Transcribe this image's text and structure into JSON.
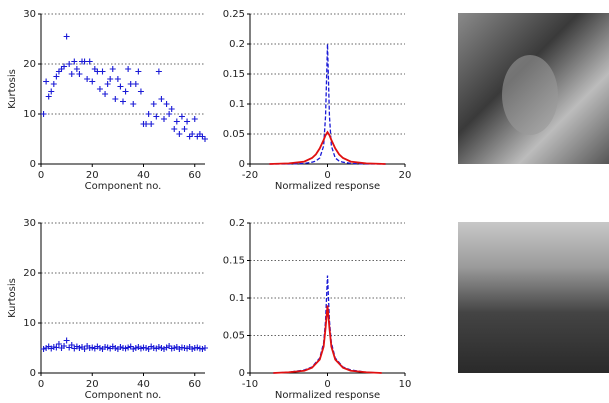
{
  "chart_data": [
    {
      "type": "scatter",
      "xlabel": "Component no.",
      "ylabel": "Kurtosis",
      "xlim": [
        0,
        64
      ],
      "ylim": [
        0,
        30
      ],
      "xticks": [
        0,
        20,
        40,
        60
      ],
      "yticks": [
        0,
        10,
        20,
        30
      ],
      "grid": true,
      "color": "#1a1ad6",
      "x": [
        1,
        2,
        3,
        4,
        5,
        6,
        7,
        8,
        9,
        10,
        11,
        12,
        13,
        14,
        15,
        16,
        17,
        18,
        19,
        20,
        21,
        22,
        23,
        24,
        25,
        26,
        27,
        28,
        29,
        30,
        31,
        32,
        33,
        34,
        35,
        36,
        37,
        38,
        39,
        40,
        41,
        42,
        43,
        44,
        45,
        46,
        47,
        48,
        49,
        50,
        51,
        52,
        53,
        54,
        55,
        56,
        57,
        58,
        59,
        60,
        61,
        62,
        63,
        64
      ],
      "values": [
        10,
        16.5,
        13.5,
        14.5,
        16,
        17.5,
        18.5,
        19,
        19.5,
        25.5,
        20,
        18,
        20.5,
        19,
        18,
        20.5,
        20.5,
        17,
        20.5,
        16.5,
        19,
        18.5,
        15,
        18.5,
        14,
        16,
        17,
        19,
        13,
        17,
        15.5,
        12.5,
        14.5,
        19,
        16,
        12,
        16,
        18.5,
        14.5,
        8,
        8,
        10,
        8,
        12,
        9.5,
        18.5,
        13,
        9,
        12,
        10,
        11,
        7,
        8.5,
        6,
        9.5,
        7,
        8.5,
        5.5,
        6,
        9,
        5.5,
        6,
        5.5,
        5
      ]
    },
    {
      "type": "line",
      "xlabel": "Normalized response",
      "xlim": [
        -20,
        20
      ],
      "ylim": [
        0,
        0.25
      ],
      "xticks": [
        -20,
        0,
        20
      ],
      "yticks": [
        0,
        0.05,
        0.1,
        0.15,
        0.2,
        0.25
      ],
      "grid": true,
      "x": [
        -15,
        -10,
        -6,
        -4,
        -3,
        -2,
        -1,
        -0.5,
        0,
        0.5,
        1,
        2,
        3,
        4,
        6,
        10,
        15
      ],
      "series": [
        {
          "color": "#1a1ad6",
          "style": "dashed",
          "values": [
            0,
            0,
            0.001,
            0.003,
            0.005,
            0.01,
            0.03,
            0.08,
            0.2,
            0.08,
            0.03,
            0.01,
            0.005,
            0.003,
            0.001,
            0,
            0
          ]
        },
        {
          "color": "#e01010",
          "style": "solid",
          "values": [
            0,
            0.001,
            0.004,
            0.01,
            0.016,
            0.026,
            0.04,
            0.048,
            0.053,
            0.048,
            0.04,
            0.026,
            0.016,
            0.01,
            0.004,
            0.001,
            0
          ]
        }
      ]
    },
    {
      "type": "scatter",
      "xlabel": "Component no.",
      "ylabel": "Kurtosis",
      "xlim": [
        0,
        64
      ],
      "ylim": [
        0,
        30
      ],
      "xticks": [
        0,
        20,
        40,
        60
      ],
      "yticks": [
        0,
        10,
        20,
        30
      ],
      "grid": true,
      "color": "#1a1ad6",
      "x": [
        1,
        2,
        3,
        4,
        5,
        6,
        7,
        8,
        9,
        10,
        11,
        12,
        13,
        14,
        15,
        16,
        17,
        18,
        19,
        20,
        21,
        22,
        23,
        24,
        25,
        26,
        27,
        28,
        29,
        30,
        31,
        32,
        33,
        34,
        35,
        36,
        37,
        38,
        39,
        40,
        41,
        42,
        43,
        44,
        45,
        46,
        47,
        48,
        49,
        50,
        51,
        52,
        53,
        54,
        55,
        56,
        57,
        58,
        59,
        60,
        61,
        62,
        63,
        64
      ],
      "values": [
        4.8,
        5,
        5.3,
        4.9,
        5.2,
        5.1,
        5.8,
        5,
        5.4,
        6.5,
        5.1,
        5.6,
        4.9,
        5.3,
        5,
        5.2,
        4.8,
        5.4,
        5,
        5.1,
        4.9,
        5.3,
        5,
        4.8,
        5.2,
        5.1,
        4.9,
        5.3,
        5,
        4.8,
        5.2,
        5,
        4.9,
        5.1,
        5.3,
        4.8,
        5,
        5.2,
        4.9,
        5.1,
        5,
        4.8,
        5.3,
        5,
        4.9,
        5.2,
        5,
        4.8,
        5.1,
        5.4,
        4.9,
        5,
        5.2,
        4.8,
        5.1,
        5,
        4.9,
        5.2,
        4.8,
        5,
        5.1,
        4.9,
        4.8,
        5
      ]
    },
    {
      "type": "line",
      "xlabel": "Normalized response",
      "xlim": [
        -10,
        10
      ],
      "ylim": [
        0,
        0.2
      ],
      "xticks": [
        -10,
        0,
        10
      ],
      "yticks": [
        0,
        0.05,
        0.1,
        0.15,
        0.2
      ],
      "grid": true,
      "x": [
        -7,
        -5,
        -3,
        -2,
        -1,
        -0.5,
        -0.25,
        0,
        0.25,
        0.5,
        1,
        2,
        3,
        5,
        7
      ],
      "series": [
        {
          "color": "#1a1ad6",
          "style": "dashed",
          "values": [
            0,
            0.001,
            0.004,
            0.008,
            0.02,
            0.04,
            0.07,
            0.13,
            0.07,
            0.04,
            0.02,
            0.008,
            0.004,
            0.001,
            0
          ]
        },
        {
          "color": "#e01010",
          "style": "solid",
          "values": [
            0,
            0.001,
            0.003,
            0.007,
            0.018,
            0.035,
            0.06,
            0.09,
            0.06,
            0.035,
            0.018,
            0.007,
            0.003,
            0.001,
            0
          ]
        }
      ]
    }
  ]
}
